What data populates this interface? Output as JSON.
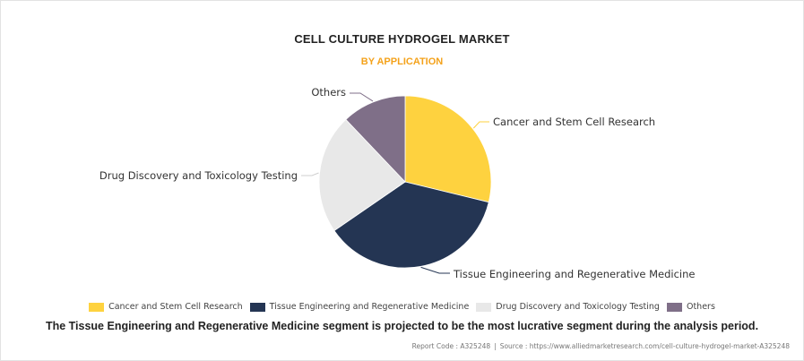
{
  "colors": {
    "subtitle": "#f4a21b"
  },
  "chart_data": {
    "type": "pie",
    "title": "CELL CULTURE HYDROGEL MARKET",
    "subtitle": "BY APPLICATION",
    "legend_position": "bottom",
    "series": [
      {
        "name": "Cancer and Stem Cell Research",
        "value": 28.8,
        "color": "#fed23f"
      },
      {
        "name": "Tissue Engineering and Regenerative Medicine",
        "value": 36.6,
        "color": "#243553"
      },
      {
        "name": "Drug Discovery and Toxicology Testing",
        "value": 22.5,
        "color": "#e8e8e8"
      },
      {
        "name": "Others",
        "value": 12.1,
        "color": "#7f6f88"
      }
    ]
  },
  "footnote": "The Tissue Engineering and Regenerative Medicine segment is projected to be the most lucrative segment during the analysis period.",
  "source": {
    "report_code": "Report Code : A325248",
    "separator": "|",
    "source_text": "Source : https://www.alliedmarketresearch.com/cell-culture-hydrogel-market-A325248"
  }
}
